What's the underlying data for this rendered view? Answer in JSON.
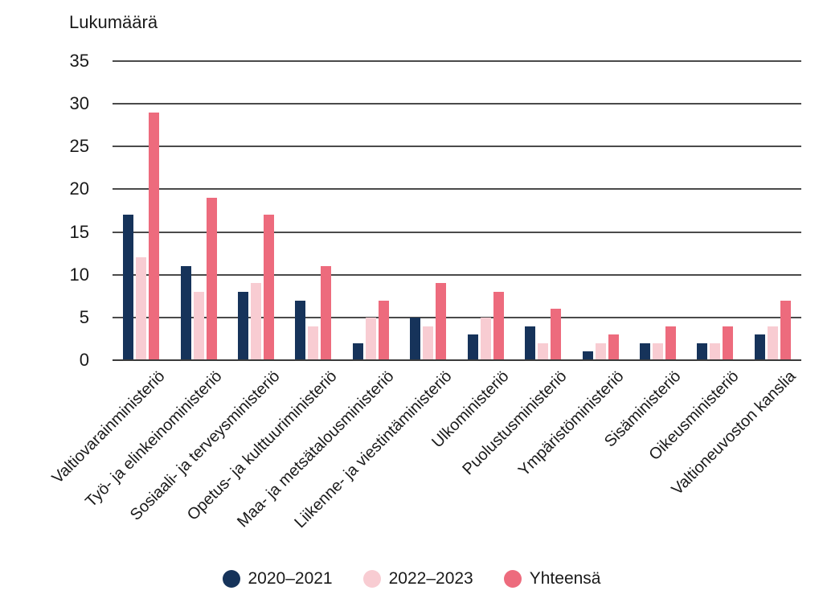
{
  "title": "Lukumäärä",
  "colors": {
    "series1": "#16335a",
    "series2": "#f8ccd2",
    "series3": "#ed6b7d",
    "gridline": "#4a4a4a",
    "text": "#1a1a1a"
  },
  "chart_data": {
    "type": "bar",
    "title": "Lukumäärä",
    "xlabel": "",
    "ylabel": "Lukumäärä",
    "ylim": [
      0,
      35
    ],
    "yticks": [
      0,
      5,
      10,
      15,
      20,
      25,
      30,
      35
    ],
    "grid": true,
    "legend_position": "bottom",
    "categories": [
      "Valtiovarainministeriö",
      "Työ- ja elinkeinoministeriö",
      "Sosiaali- ja terveysministeriö",
      "Opetus- ja kulttuuriministeriö",
      "Maa- ja metsätalousministeriö",
      "Liikenne- ja viestintäministeriö",
      "Ulkoministeriö",
      "Puolustusministeriö",
      "Ympäristöministeriö",
      "Sisäministeriö",
      "Oikeusministeriö",
      "Valtioneuvoston kanslia"
    ],
    "series": [
      {
        "name": "2020–2021",
        "color": "#16335a",
        "values": [
          17,
          11,
          8,
          7,
          2,
          5,
          3,
          4,
          1,
          2,
          2,
          3
        ]
      },
      {
        "name": "2022–2023",
        "color": "#f8ccd2",
        "values": [
          12,
          8,
          9,
          4,
          5,
          4,
          5,
          2,
          2,
          2,
          2,
          4
        ]
      },
      {
        "name": "Yhteensä",
        "color": "#ed6b7d",
        "values": [
          29,
          19,
          17,
          11,
          7,
          9,
          8,
          6,
          3,
          4,
          4,
          7
        ]
      }
    ]
  }
}
